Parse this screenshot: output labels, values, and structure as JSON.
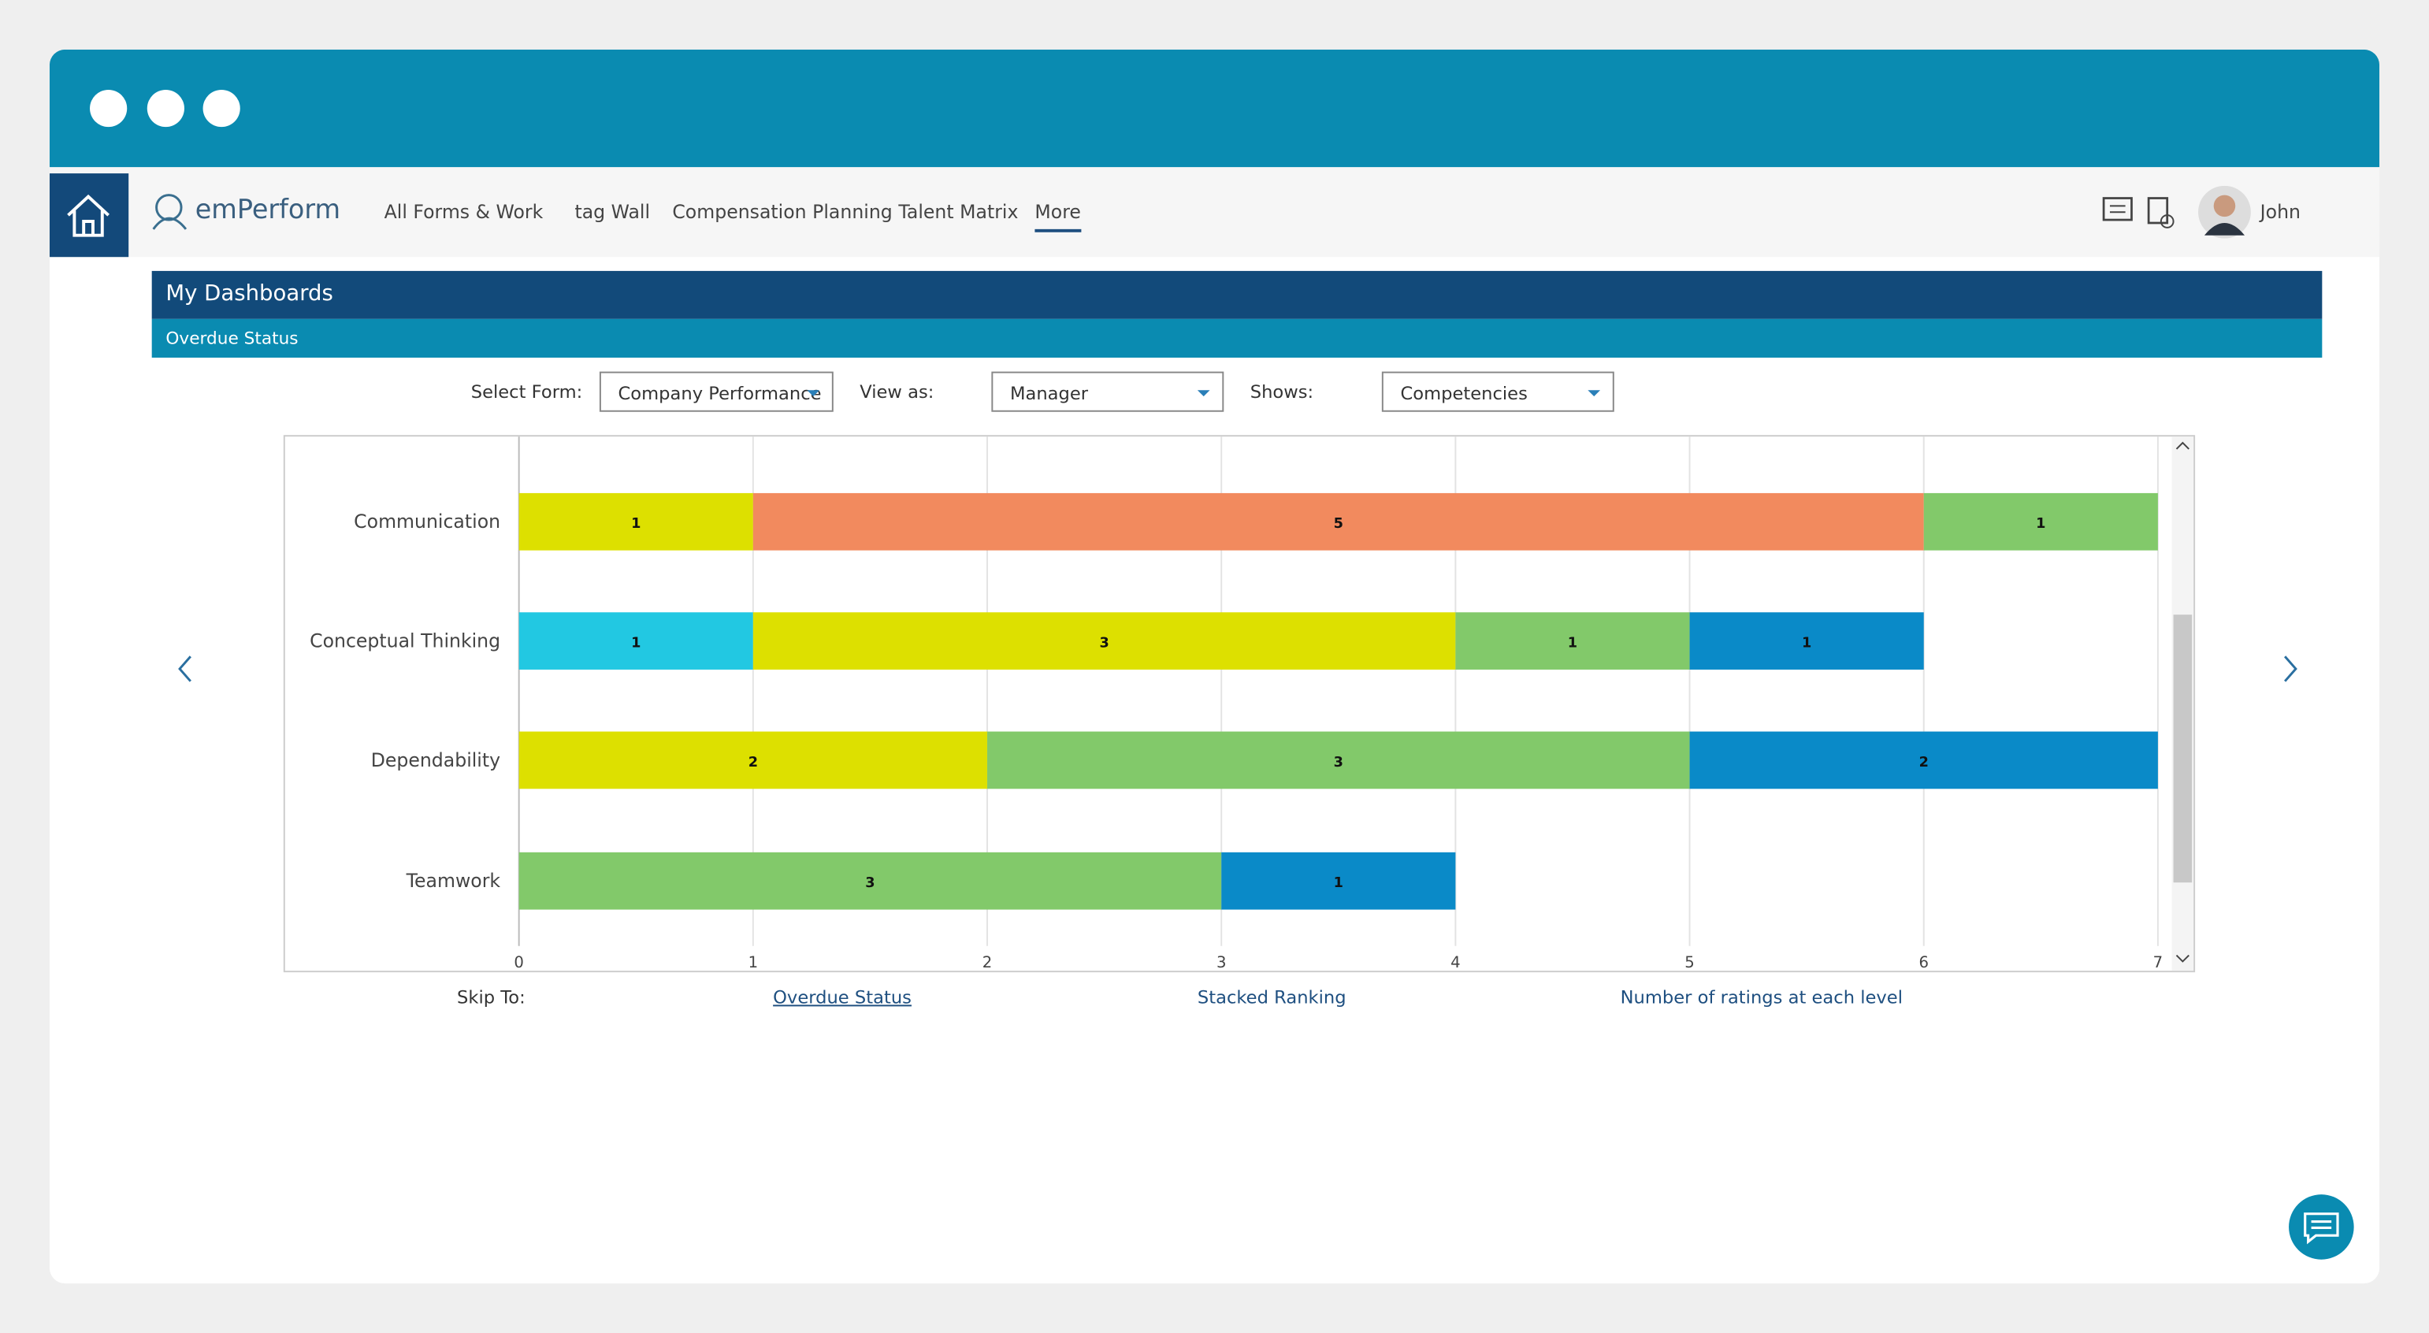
{
  "nav": {
    "logo": "emPerform",
    "items": [
      "All Forms & Work",
      "tag Wall",
      "Compensation Planning",
      "Talent Matrix",
      "More"
    ],
    "user": "John"
  },
  "header": {
    "title": "My Dashboards",
    "subtitle": "Overdue Status"
  },
  "filters": [
    {
      "label": "Select Form:",
      "value": "Company Performance"
    },
    {
      "label": "View as:",
      "value": "Manager"
    },
    {
      "label": "Shows:",
      "value": "Competencies"
    }
  ],
  "skip": {
    "label": "Skip To:",
    "links": [
      "Overdue Status",
      "Stacked Ranking",
      "Number of ratings at each level"
    ]
  },
  "chart_data": {
    "type": "stacked-bar-horizontal",
    "categories": [
      "Communication",
      "Conceptual Thinking",
      "Dependability",
      "Teamwork"
    ],
    "series": [
      {
        "color": "#22c8e2",
        "values": [
          null,
          1,
          null,
          null
        ]
      },
      {
        "color": "#dde000",
        "values": [
          1,
          3,
          2,
          null
        ]
      },
      {
        "color": "#f28a5e",
        "values": [
          5,
          null,
          null,
          null
        ]
      },
      {
        "color": "#82c96a",
        "values": [
          1,
          1,
          3,
          3
        ]
      },
      {
        "color": "#0a8ac8",
        "values": [
          null,
          1,
          2,
          1
        ]
      }
    ],
    "xlim": [
      0,
      7
    ],
    "xticks": [
      0,
      1,
      2,
      3,
      4,
      5,
      6,
      7
    ],
    "grid": true
  }
}
